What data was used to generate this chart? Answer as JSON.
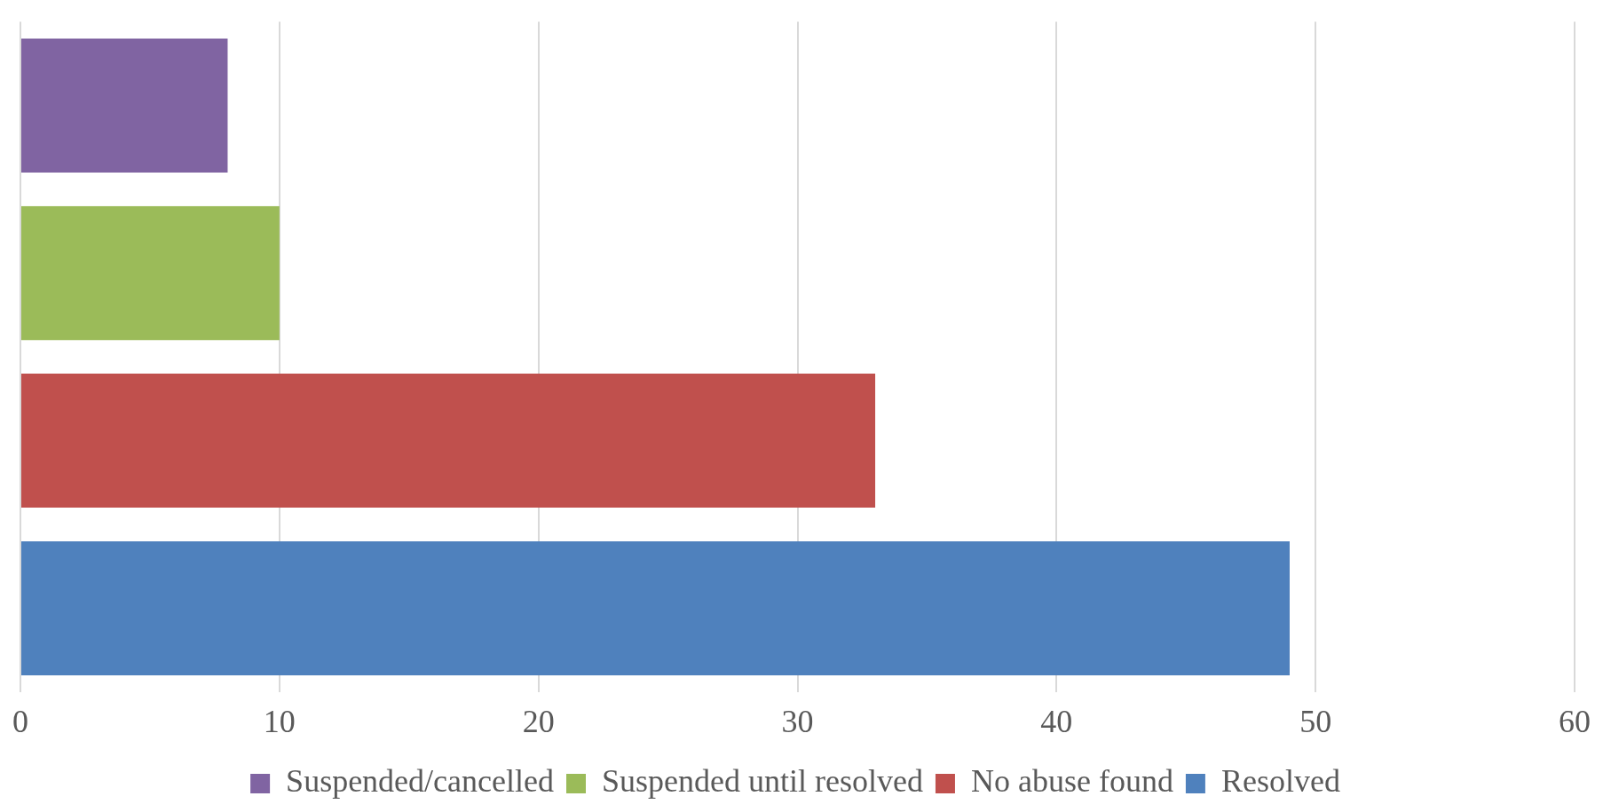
{
  "chart_data": {
    "type": "bar",
    "orientation": "horizontal",
    "categories": [
      null
    ],
    "series": [
      {
        "name": "Suspended/cancelled",
        "color": "#8064a2",
        "values": [
          8
        ]
      },
      {
        "name": "Suspended until resolved",
        "color": "#9bbb59",
        "values": [
          10
        ]
      },
      {
        "name": "No abuse found",
        "color": "#c0504d",
        "values": [
          33
        ]
      },
      {
        "name": "Resolved",
        "color": "#4f81bd",
        "values": [
          49
        ]
      }
    ],
    "xlim": [
      0,
      60
    ],
    "xticks": [
      0,
      10,
      20,
      30,
      40,
      50,
      60
    ],
    "grid": "x",
    "legend": "bottom"
  }
}
